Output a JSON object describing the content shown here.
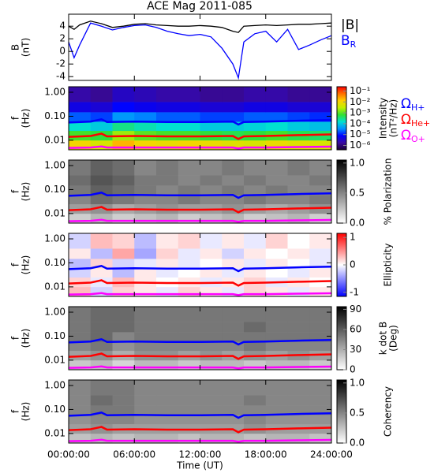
{
  "title": "ACE Mag 2011-085",
  "x_axis": {
    "label": "Time (UT)",
    "xlim": [
      0,
      24
    ],
    "xticks": [
      {
        "value": 0,
        "label": "00:00:00"
      },
      {
        "value": 6,
        "label": "06:00:00"
      },
      {
        "value": 12,
        "label": "12:00:00"
      },
      {
        "value": 18,
        "label": "18:00:00"
      },
      {
        "value": 24,
        "label": "24:00:00"
      }
    ]
  },
  "bins": {
    "time": [
      0,
      2,
      4,
      6,
      8,
      10,
      12,
      14,
      16,
      18,
      20,
      22,
      24
    ],
    "freq": [
      0.004,
      0.01,
      0.025,
      0.06,
      0.15,
      0.4,
      1.7
    ]
  },
  "gyrofrequencies": {
    "x": [
      0,
      2,
      3,
      3.5,
      6,
      9,
      12,
      15,
      15.5,
      16,
      18,
      21,
      24
    ],
    "series": [
      {
        "name": "Ω",
        "subscript": "H+",
        "color": "#0000ff",
        "values": [
          0.055,
          0.06,
          0.075,
          0.058,
          0.06,
          0.058,
          0.058,
          0.06,
          0.045,
          0.058,
          0.06,
          0.065,
          0.07
        ]
      },
      {
        "name": "Ω",
        "subscript": "He+",
        "color": "#ff0000",
        "values": [
          0.0138,
          0.015,
          0.0188,
          0.0145,
          0.015,
          0.0145,
          0.0145,
          0.015,
          0.0113,
          0.0145,
          0.015,
          0.0163,
          0.0175
        ]
      },
      {
        "name": "Ω",
        "subscript": "O+",
        "color": "#ff00ff",
        "values": [
          0.0048,
          0.005,
          0.0055,
          0.005,
          0.005,
          0.005,
          0.005,
          0.005,
          0.0045,
          0.005,
          0.005,
          0.0052,
          0.0054
        ]
      }
    ]
  },
  "chart_data": [
    {
      "type": "line",
      "ylabel": [
        "B",
        "(nT)"
      ],
      "ylim": [
        -4.6,
        5.9
      ],
      "yticks": [
        -4,
        -2,
        0,
        2,
        4
      ],
      "x": [
        0,
        0.5,
        1,
        2,
        3,
        4,
        5,
        6,
        7,
        8,
        9,
        10,
        11,
        12,
        13,
        14,
        15,
        15.5,
        16,
        17,
        18,
        19,
        20,
        21,
        22,
        23,
        24
      ],
      "series": [
        {
          "name": "|B|",
          "color": "#000000",
          "values": [
            4.0,
            3.5,
            4.2,
            4.8,
            4.4,
            3.8,
            4.0,
            4.3,
            4.4,
            4.2,
            4.1,
            4.0,
            4.0,
            4.1,
            4.0,
            3.8,
            3.2,
            3.0,
            4.0,
            4.1,
            4.2,
            4.1,
            4.2,
            4.3,
            4.3,
            4.4,
            4.5
          ]
        },
        {
          "name": "B",
          "subscript": "R",
          "color": "#0000ff",
          "values": [
            1.5,
            -1.0,
            1.0,
            4.5,
            4.0,
            3.4,
            3.8,
            4.1,
            4.2,
            3.8,
            3.2,
            2.8,
            2.5,
            2.7,
            2.3,
            0.5,
            -2.0,
            -4.2,
            1.5,
            2.8,
            3.2,
            1.5,
            3.5,
            0.3,
            1.0,
            1.8,
            2.5
          ]
        }
      ]
    },
    {
      "type": "spectrogram",
      "ylabel": [
        "f",
        "(Hz)"
      ],
      "ylog": true,
      "ylim": [
        0.004,
        1.7
      ],
      "yticks": [
        {
          "value": 1,
          "label": "1.00"
        },
        {
          "value": 0.1,
          "label": "0.10"
        },
        {
          "value": 0.01,
          "label": "0.01"
        }
      ],
      "colorbar_label": [
        "Intensity",
        "(nT²/Hz)"
      ],
      "zlog": true,
      "zlim": [
        4e-07,
        0.25
      ],
      "zticks": [
        {
          "value": 0.1,
          "label": "10⁻¹"
        },
        {
          "value": 0.01,
          "label": "10⁻²"
        },
        {
          "value": 0.001,
          "label": "10⁻³"
        },
        {
          "value": 0.0001,
          "label": "10⁻⁴"
        },
        {
          "value": 1e-05,
          "label": "10⁻⁵"
        },
        {
          "value": 1e-06,
          "label": "10⁻⁶"
        }
      ],
      "colormap": [
        "#1a0033",
        "#3a0aa0",
        "#0000ff",
        "#0090ff",
        "#00e0d0",
        "#30e030",
        "#c0f000",
        "#ffd000",
        "#ff7000",
        "#ff0000"
      ],
      "gyro_legend": true,
      "z": [
        [
          0.01,
          0.005,
          0.02,
          0.01,
          0.008,
          0.01,
          0.008,
          0.006,
          0.005,
          0.008,
          0.006,
          0.005
        ],
        [
          0.0008,
          0.0006,
          0.002,
          0.001,
          0.0008,
          0.0008,
          0.0006,
          0.0005,
          0.0006,
          0.0008,
          0.0005,
          0.0004
        ],
        [
          0.00015,
          0.0001,
          0.0003,
          0.0002,
          0.00015,
          0.00015,
          0.0001,
          0.0001,
          0.00012,
          0.00015,
          0.0001,
          8e-05
        ],
        [
          2e-05,
          1.5e-05,
          4e-05,
          3e-05,
          2e-05,
          2e-05,
          1.5e-05,
          1.5e-05,
          2e-05,
          2e-05,
          1.5e-05,
          1.2e-05
        ],
        [
          5e-06,
          4e-06,
          8e-06,
          6e-06,
          5e-06,
          5e-06,
          4e-06,
          4e-06,
          5e-06,
          5e-06,
          4e-06,
          4e-06
        ],
        [
          2e-06,
          1.5e-06,
          3e-06,
          2.5e-06,
          2e-06,
          2e-06,
          1.5e-06,
          1.5e-06,
          2e-06,
          2e-06,
          1.5e-06,
          1.5e-06
        ]
      ]
    },
    {
      "type": "spectrogram",
      "ylabel": [
        "f",
        "(Hz)"
      ],
      "ylog": true,
      "ylim": [
        0.004,
        1.7
      ],
      "yticks": [
        {
          "value": 1,
          "label": "1.00"
        },
        {
          "value": 0.1,
          "label": "0.10"
        },
        {
          "value": 0.01,
          "label": "0.01"
        }
      ],
      "colorbar_label": [
        "% Polarization"
      ],
      "zlim": [
        0,
        1.05
      ],
      "zticks": [
        {
          "value": 0,
          "label": "0.0"
        },
        {
          "value": 0.5,
          "label": "0.5"
        },
        {
          "value": 1,
          "label": "1.0"
        }
      ],
      "colormap": [
        "#ffffff",
        "#000000"
      ],
      "z": [
        [
          0.2,
          0.3,
          0.2,
          0.25,
          0.3,
          0.2,
          0.25,
          0.3,
          0.2,
          0.25,
          0.3,
          0.2
        ],
        [
          0.4,
          0.45,
          0.35,
          0.4,
          0.45,
          0.4,
          0.4,
          0.45,
          0.4,
          0.35,
          0.4,
          0.45
        ],
        [
          0.5,
          0.6,
          0.55,
          0.5,
          0.5,
          0.55,
          0.5,
          0.5,
          0.55,
          0.5,
          0.5,
          0.55
        ],
        [
          0.55,
          0.65,
          0.6,
          0.55,
          0.5,
          0.55,
          0.5,
          0.55,
          0.5,
          0.55,
          0.5,
          0.5
        ],
        [
          0.6,
          0.7,
          0.65,
          0.55,
          0.55,
          0.5,
          0.55,
          0.5,
          0.55,
          0.5,
          0.5,
          0.55
        ],
        [
          0.55,
          0.65,
          0.6,
          0.5,
          0.55,
          0.5,
          0.5,
          0.55,
          0.5,
          0.5,
          0.55,
          0.5
        ]
      ]
    },
    {
      "type": "spectrogram",
      "ylabel": [
        "f",
        "(Hz)"
      ],
      "ylog": true,
      "ylim": [
        0.004,
        1.7
      ],
      "yticks": [
        {
          "value": 1,
          "label": "1.00"
        },
        {
          "value": 0.1,
          "label": "0.10"
        },
        {
          "value": 0.01,
          "label": "0.01"
        }
      ],
      "colorbar_label": [
        "Ellipticity"
      ],
      "zlim": [
        -1.15,
        1.15
      ],
      "zticks": [
        -1,
        0,
        1
      ],
      "colormap": [
        "#0000ff",
        "#ffffff",
        "#ff0000"
      ],
      "z": [
        [
          0.3,
          -0.2,
          0.2,
          0.1,
          -0.1,
          0.2,
          0.1,
          -0.1,
          0.2,
          0.1,
          -0.1,
          0.1
        ],
        [
          0.2,
          -0.1,
          0.3,
          0.1,
          0,
          0.1,
          -0.1,
          0.1,
          0.2,
          -0.1,
          0.1,
          0
        ],
        [
          -0.2,
          0.1,
          -0.3,
          0.1,
          -0.1,
          0,
          0.1,
          -0.1,
          0.1,
          0,
          -0.1,
          0.1
        ],
        [
          -0.3,
          0.2,
          -0.2,
          -0.1,
          0.1,
          -0.1,
          0,
          0.1,
          -0.1,
          0.1,
          0,
          -0.1
        ],
        [
          0.1,
          -0.3,
          0.4,
          -0.4,
          0.2,
          -0.1,
          0.1,
          -0.2,
          0.1,
          0,
          0.1,
          -0.1
        ],
        [
          -0.2,
          0.3,
          0.2,
          -0.3,
          0.1,
          0.2,
          -0.1,
          0.1,
          -0.1,
          0.2,
          0,
          0.1
        ]
      ]
    },
    {
      "type": "spectrogram",
      "ylabel": [
        "f",
        "(Hz)"
      ],
      "ylog": true,
      "ylim": [
        0.004,
        1.7
      ],
      "yticks": [
        {
          "value": 1,
          "label": "1.00"
        },
        {
          "value": 0.1,
          "label": "0.10"
        },
        {
          "value": 0.01,
          "label": "0.01"
        }
      ],
      "colorbar_label": [
        "k dot B",
        "(Deg)"
      ],
      "zlim": [
        0,
        94
      ],
      "zticks": [
        0,
        30,
        60,
        90
      ],
      "colormap": [
        "#ffffff",
        "#000000"
      ],
      "z": [
        [
          20,
          25,
          15,
          25,
          25,
          20,
          25,
          25,
          20,
          25,
          25,
          20
        ],
        [
          35,
          40,
          30,
          40,
          40,
          35,
          40,
          35,
          40,
          35,
          40,
          35
        ],
        [
          45,
          50,
          40,
          45,
          45,
          45,
          45,
          45,
          50,
          45,
          45,
          45
        ],
        [
          50,
          55,
          45,
          50,
          50,
          50,
          50,
          50,
          50,
          50,
          50,
          50
        ],
        [
          50,
          55,
          55,
          50,
          50,
          50,
          50,
          50,
          55,
          50,
          50,
          50
        ],
        [
          50,
          55,
          55,
          50,
          50,
          50,
          50,
          50,
          50,
          50,
          50,
          50
        ]
      ]
    },
    {
      "type": "spectrogram",
      "ylabel": [
        "f",
        "(Hz)"
      ],
      "ylog": true,
      "ylim": [
        0.004,
        1.7
      ],
      "yticks": [
        {
          "value": 1,
          "label": "1.00"
        },
        {
          "value": 0.1,
          "label": "0.10"
        },
        {
          "value": 0.01,
          "label": "0.01"
        }
      ],
      "colorbar_label": [
        "Coherency"
      ],
      "zlim": [
        0,
        1.05
      ],
      "zticks": [
        {
          "value": 0,
          "label": "0.0"
        },
        {
          "value": 0.5,
          "label": "0.5"
        },
        {
          "value": 1,
          "label": "1.0"
        }
      ],
      "colormap": [
        "#ffffff",
        "#000000"
      ],
      "z": [
        [
          0.25,
          0.3,
          0.25,
          0.3,
          0.3,
          0.25,
          0.3,
          0.3,
          0.25,
          0.3,
          0.3,
          0.25
        ],
        [
          0.4,
          0.45,
          0.4,
          0.4,
          0.4,
          0.4,
          0.4,
          0.4,
          0.45,
          0.4,
          0.4,
          0.4
        ],
        [
          0.45,
          0.5,
          0.5,
          0.45,
          0.45,
          0.45,
          0.45,
          0.45,
          0.5,
          0.45,
          0.45,
          0.45
        ],
        [
          0.5,
          0.55,
          0.55,
          0.5,
          0.5,
          0.5,
          0.5,
          0.5,
          0.5,
          0.5,
          0.5,
          0.5
        ],
        [
          0.5,
          0.6,
          0.55,
          0.5,
          0.5,
          0.5,
          0.5,
          0.5,
          0.55,
          0.5,
          0.5,
          0.5
        ],
        [
          0.5,
          0.55,
          0.55,
          0.5,
          0.5,
          0.5,
          0.5,
          0.5,
          0.5,
          0.5,
          0.5,
          0.5
        ]
      ]
    }
  ]
}
